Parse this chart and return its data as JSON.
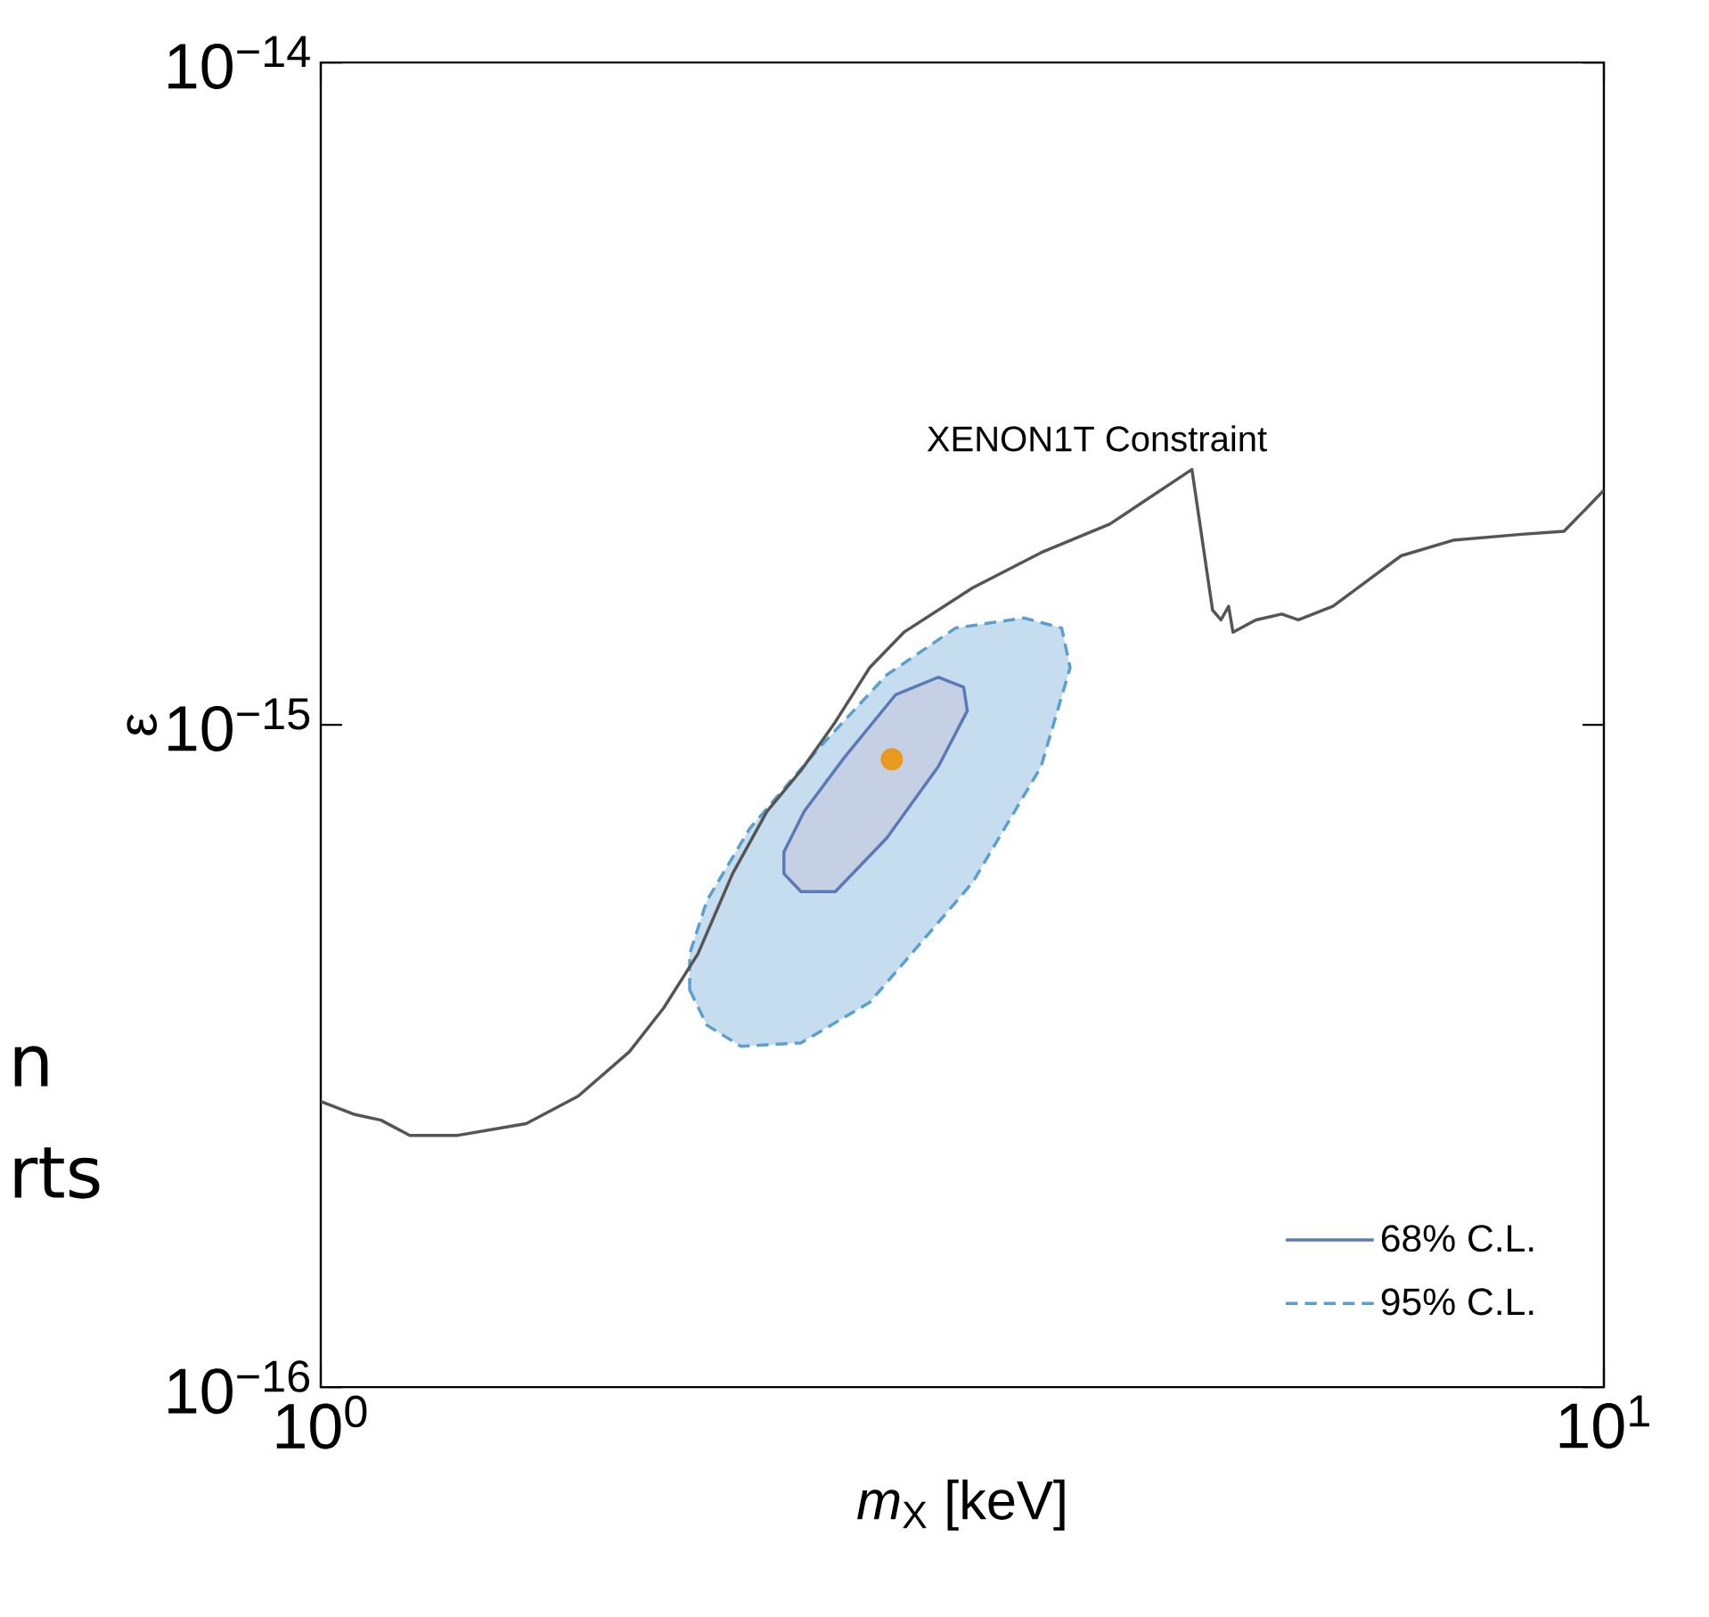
{
  "chart_data": {
    "type": "line",
    "xlabel": "*m*$_{X}$ [keV]",
    "ylabel": "ε",
    "log": "xy",
    "xlim": [
      1,
      10
    ],
    "ylim": [
      1e-16,
      1e-14
    ],
    "xticks": [
      {
        "value": 1,
        "label": "10$^{0}$"
      },
      {
        "value": 10,
        "label": "10$^{1}$"
      }
    ],
    "yticks": [
      {
        "value": 1e-16,
        "label": "10$^{−16}$"
      },
      {
        "value": 1e-15,
        "label": "10$^{−15}$"
      },
      {
        "value": 1e-14,
        "label": "10$^{−14}$"
      }
    ],
    "legend": "bottom right",
    "grid": false,
    "series": [
      {
        "name": "XENON1T Constraint",
        "color": "#555555",
        "line_style": "solid",
        "marker": "none",
        "x": [
          1.0,
          1.063,
          1.114,
          1.173,
          1.279,
          1.446,
          1.587,
          1.74,
          1.851,
          1.968,
          2.094,
          2.227,
          2.367,
          2.518,
          2.678,
          2.848,
          3.221,
          3.643,
          4.121,
          4.775,
          4.955,
          5.03,
          5.1,
          5.14,
          5.355,
          5.61,
          5.78,
          6.15,
          6.54,
          6.95,
          7.63,
          8.63,
          9.31,
          10.0
        ],
        "values": [
          2.7e-16,
          2.58e-16,
          2.53e-16,
          2.4e-16,
          2.4e-16,
          2.5e-16,
          2.75e-16,
          3.21e-16,
          3.74e-16,
          4.51e-16,
          5.96e-16,
          7.4e-16,
          8.53e-16,
          1.01e-15,
          1.22e-15,
          1.38e-15,
          1.61e-15,
          1.82e-15,
          2.01e-15,
          2.43e-15,
          1.49e-15,
          1.44e-15,
          1.51e-15,
          1.38e-15,
          1.44e-15,
          1.47e-15,
          1.44e-15,
          1.51e-15,
          1.65e-15,
          1.8e-15,
          1.9e-15,
          1.94e-15,
          1.96e-15,
          2.26e-15
        ]
      },
      {
        "name": "95% C.L.",
        "type": "area",
        "color": "#5a9fd0",
        "line_style": "dashed",
        "marker": "none",
        "x": [
          1.939,
          2.0,
          2.126,
          2.367,
          2.678,
          3.221,
          3.643,
          3.838,
          3.78,
          3.532,
          3.124,
          2.762,
          2.442,
          2.159,
          2.0,
          1.939
        ],
        "values": [
          3.98e-16,
          3.52e-16,
          3.27e-16,
          3.31e-16,
          3.81e-16,
          5.78e-16,
          8.65e-16,
          1.22e-15,
          1.4e-15,
          1.45e-15,
          1.4e-15,
          1.19e-15,
          9.2e-16,
          6.97e-16,
          5.43e-16,
          4.51e-16
        ]
      },
      {
        "name": "68% C.L.",
        "type": "area",
        "color": "#5a7ab5",
        "line_style": "solid",
        "marker": "none",
        "x": [
          2.296,
          2.367,
          2.518,
          2.762,
          3.029,
          3.191,
          3.17,
          3.029,
          2.805,
          2.557,
          2.381,
          2.296
        ],
        "values": [
          5.96e-16,
          5.6e-16,
          5.6e-16,
          6.75e-16,
          8.65e-16,
          1.05e-15,
          1.14e-15,
          1.18e-15,
          1.11e-15,
          8.91e-16,
          7.4e-16,
          6.43e-16
        ]
      },
      {
        "type": "scatter",
        "color": "#e89a1e",
        "marker": "circle",
        "x": [
          2.787
        ],
        "values": [
          8.87e-16
        ]
      }
    ],
    "annotations": [
      "n",
      "rts"
    ]
  }
}
